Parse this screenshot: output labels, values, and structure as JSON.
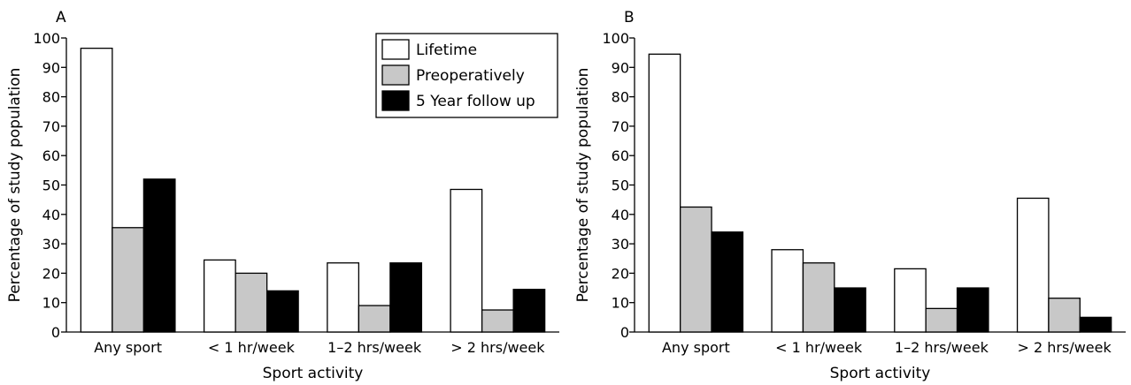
{
  "chart_data": [
    {
      "panel_label": "A",
      "type": "bar",
      "categories": [
        "Any sport",
        "< 1 hr/week",
        "1–2 hrs/week",
        "> 2 hrs/week"
      ],
      "series": [
        {
          "name": "Lifetime",
          "values": [
            96.5,
            24.5,
            23.5,
            48.5
          ],
          "color": "#ffffff"
        },
        {
          "name": "Preoperatively",
          "values": [
            35.5,
            20.0,
            9.0,
            7.5
          ],
          "color": "#c8c8c8"
        },
        {
          "name": "5 Year follow up",
          "values": [
            52.0,
            14.0,
            23.5,
            14.5
          ],
          "color": "#000000"
        }
      ],
      "xlabel": "Sport activity",
      "ylabel": "Percentage of study population",
      "ylim": [
        0,
        100
      ],
      "yticks": [
        0,
        10,
        20,
        30,
        40,
        50,
        60,
        70,
        80,
        90,
        100
      ],
      "legend": "top-right",
      "grid": false
    },
    {
      "panel_label": "B",
      "type": "bar",
      "categories": [
        "Any sport",
        "< 1 hr/week",
        "1–2 hrs/week",
        "> 2 hrs/week"
      ],
      "series": [
        {
          "name": "Lifetime",
          "values": [
            94.5,
            28.0,
            21.5,
            45.5
          ],
          "color": "#ffffff"
        },
        {
          "name": "Preoperatively",
          "values": [
            42.5,
            23.5,
            8.0,
            11.5
          ],
          "color": "#c8c8c8"
        },
        {
          "name": "5 Year follow up",
          "values": [
            34.0,
            15.0,
            15.0,
            5.0
          ],
          "color": "#000000"
        }
      ],
      "xlabel": "Sport activity",
      "ylabel": "Percentage of study population",
      "ylim": [
        0,
        100
      ],
      "yticks": [
        0,
        10,
        20,
        30,
        40,
        50,
        60,
        70,
        80,
        90,
        100
      ],
      "legend": "none",
      "grid": false
    }
  ]
}
